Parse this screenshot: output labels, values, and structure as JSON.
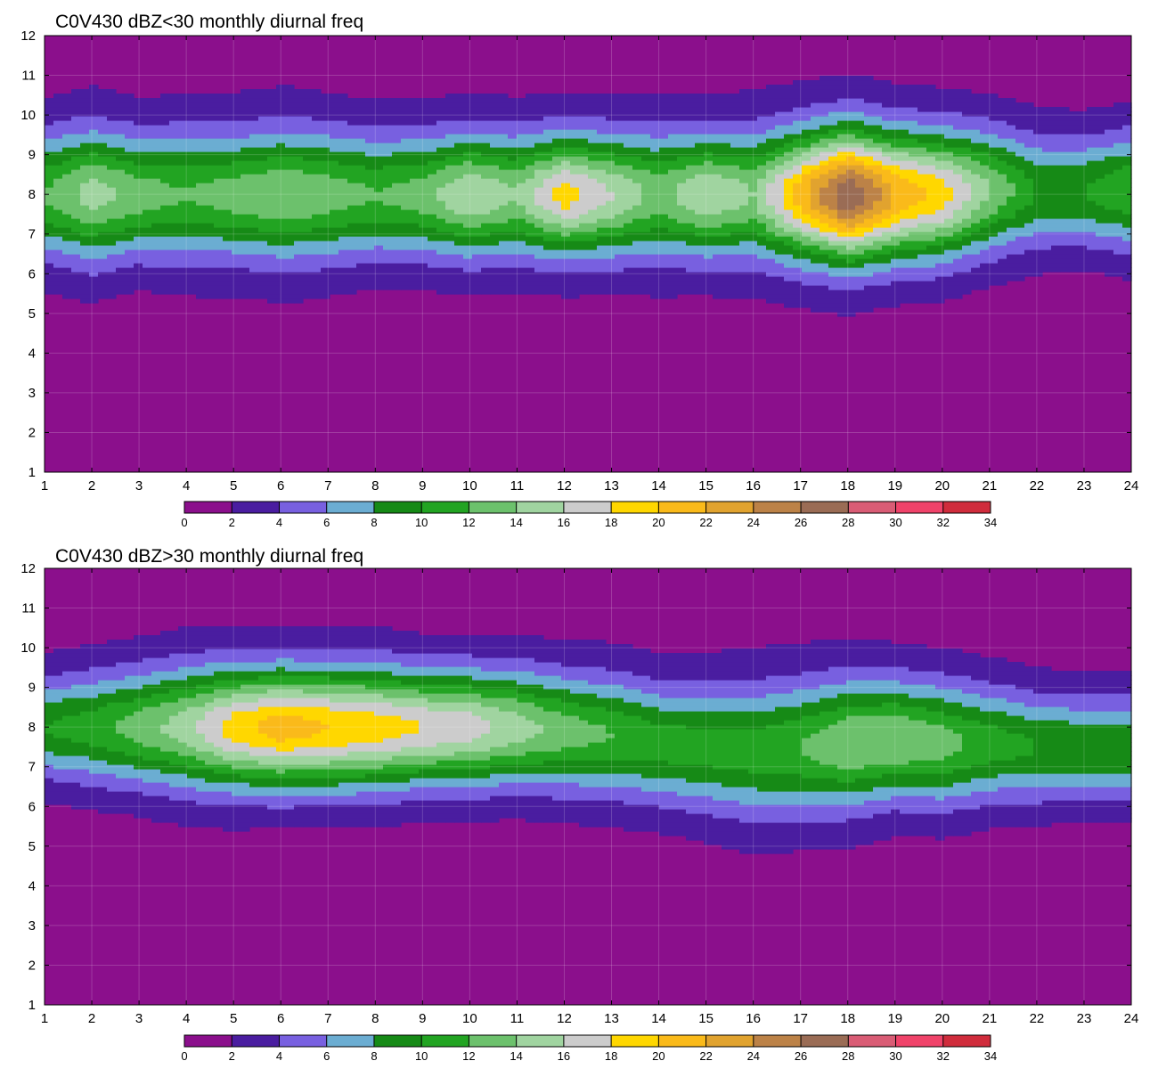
{
  "chart_data": [
    {
      "type": "heatmap",
      "title": "C0V430 dBZ<30 monthly diurnal freq",
      "x_ticks": [
        "1",
        "2",
        "3",
        "4",
        "5",
        "6",
        "7",
        "8",
        "9",
        "10",
        "11",
        "12",
        "13",
        "14",
        "15",
        "16",
        "17",
        "18",
        "19",
        "20",
        "21",
        "22",
        "23",
        "24"
      ],
      "y_ticks": [
        "1",
        "2",
        "3",
        "4",
        "5",
        "6",
        "7",
        "8",
        "9",
        "10",
        "11",
        "12"
      ],
      "xlim": [
        1,
        24
      ],
      "ylim": [
        1,
        12
      ],
      "colorbar_ticks": [
        "0",
        "2",
        "4",
        "6",
        "8",
        "10",
        "12",
        "14",
        "16",
        "18",
        "20",
        "22",
        "24",
        "26",
        "28",
        "30",
        "32",
        "34"
      ],
      "levels": [
        0,
        2,
        4,
        6,
        8,
        10,
        12,
        14,
        16,
        18,
        20,
        22,
        24,
        26,
        28,
        30,
        32,
        34
      ],
      "colors": [
        "#8B0F8C",
        "#4A1DA0",
        "#7860E0",
        "#6BADD2",
        "#168A16",
        "#22A422",
        "#6CC16C",
        "#A0D4A0",
        "#CCCCCC",
        "#FFD700",
        "#FABA1A",
        "#E1A32F",
        "#BC8247",
        "#9A6C55",
        "#D95C75",
        "#F0436A",
        "#D02C3C"
      ],
      "grid": true,
      "profiles_x": [
        1,
        2,
        3,
        4,
        5,
        6,
        7,
        8,
        9,
        10,
        11,
        12,
        13,
        14,
        15,
        16,
        17,
        18,
        19,
        20,
        21,
        22,
        23,
        24
      ],
      "center_y": [
        8.0,
        8.0,
        8.0,
        8.0,
        8.0,
        8.0,
        8.0,
        8.0,
        8.0,
        8.0,
        8.0,
        8.0,
        8.0,
        8.0,
        8.0,
        8.0,
        8.0,
        8.0,
        8.0,
        8.0,
        8.1,
        8.1,
        8.1,
        8.1
      ],
      "peak": [
        12,
        15,
        13,
        12,
        13,
        14,
        13,
        12,
        13,
        16,
        14,
        19,
        16,
        13,
        16,
        14,
        21,
        28,
        22,
        19,
        14,
        10,
        10,
        12
      ],
      "width": [
        1.8,
        1.9,
        1.8,
        1.9,
        1.8,
        1.9,
        1.9,
        1.8,
        1.8,
        1.8,
        1.8,
        1.8,
        1.8,
        1.8,
        1.8,
        1.8,
        1.9,
        2.0,
        1.9,
        1.9,
        1.8,
        1.6,
        1.6,
        1.7
      ],
      "base": [
        3.0,
        3.4,
        2.9,
        3.0,
        3.5,
        3.5,
        3.0,
        2.8,
        2.9,
        3.2,
        3.0,
        3.1,
        3.1,
        3.5,
        3.2,
        3.6,
        3.7,
        3.4,
        3.3,
        3.0,
        2.8,
        3.0,
        2.6,
        2.9
      ]
    },
    {
      "type": "heatmap",
      "title": "C0V430 dBZ>30 monthly diurnal freq",
      "x_ticks": [
        "1",
        "2",
        "3",
        "4",
        "5",
        "6",
        "7",
        "8",
        "9",
        "10",
        "11",
        "12",
        "13",
        "14",
        "15",
        "16",
        "17",
        "18",
        "19",
        "20",
        "21",
        "22",
        "23",
        "24"
      ],
      "y_ticks": [
        "1",
        "2",
        "3",
        "4",
        "5",
        "6",
        "7",
        "8",
        "9",
        "10",
        "11",
        "12"
      ],
      "xlim": [
        1,
        24
      ],
      "ylim": [
        1,
        12
      ],
      "colorbar_ticks": [
        "0",
        "2",
        "4",
        "6",
        "8",
        "10",
        "12",
        "14",
        "16",
        "18",
        "20",
        "22",
        "24",
        "26",
        "28",
        "30",
        "32",
        "34"
      ],
      "levels": [
        0,
        2,
        4,
        6,
        8,
        10,
        12,
        14,
        16,
        18,
        20,
        22,
        24,
        26,
        28,
        30,
        32,
        34
      ],
      "colors": [
        "#8B0F8C",
        "#4A1DA0",
        "#7860E0",
        "#6BADD2",
        "#168A16",
        "#22A422",
        "#6CC16C",
        "#A0D4A0",
        "#CCCCCC",
        "#FFD700",
        "#FABA1A",
        "#E1A32F",
        "#BC8247",
        "#9A6C55",
        "#D95C75",
        "#F0436A",
        "#D02C3C"
      ],
      "grid": true,
      "profiles_x": [
        1,
        2,
        3,
        4,
        5,
        6,
        7,
        8,
        9,
        10,
        11,
        12,
        13,
        14,
        15,
        16,
        17,
        18,
        19,
        20,
        21,
        22,
        23,
        24
      ],
      "center_y": [
        8.0,
        8.0,
        8.0,
        8.0,
        8.0,
        8.0,
        8.0,
        8.0,
        8.0,
        8.0,
        8.0,
        7.9,
        7.8,
        7.6,
        7.5,
        7.4,
        7.5,
        7.6,
        7.7,
        7.6,
        7.6,
        7.5,
        7.5,
        7.5
      ],
      "peak": [
        10,
        11,
        13,
        15,
        19,
        21,
        20,
        19,
        18,
        17,
        15,
        13,
        12,
        11,
        11,
        11,
        12,
        14,
        14,
        13,
        11,
        10,
        10,
        10
      ],
      "width": [
        1.5,
        1.6,
        1.7,
        1.8,
        1.8,
        1.8,
        1.8,
        1.8,
        1.7,
        1.7,
        1.7,
        1.7,
        1.7,
        1.7,
        1.8,
        1.9,
        1.9,
        1.9,
        1.8,
        1.8,
        1.7,
        1.6,
        1.5,
        1.5
      ],
      "base": [
        2.6,
        2.8,
        2.8,
        3.1,
        3.1,
        2.8,
        2.9,
        3.0,
        2.8,
        2.9,
        2.9,
        3.0,
        3.2,
        3.0,
        3.0,
        3.2,
        3.2,
        3.2,
        2.9,
        2.8,
        2.6,
        2.6,
        2.5,
        2.5
      ]
    }
  ]
}
